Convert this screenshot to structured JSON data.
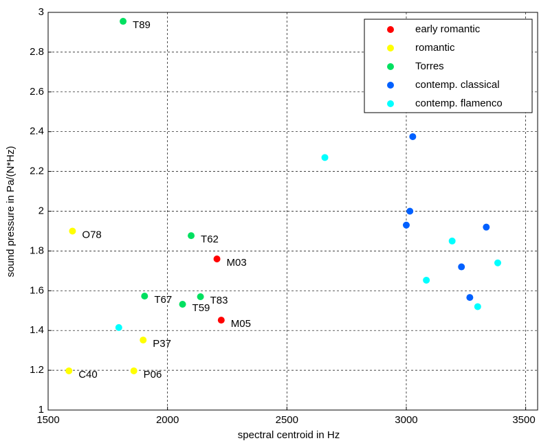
{
  "chart_data": {
    "type": "scatter",
    "x_label": "spectral centroid in Hz",
    "y_label": "sound pressure in Pa/(N*Hz)",
    "xlim": [
      1500,
      3550
    ],
    "xticks": [
      1500,
      2000,
      2500,
      3000,
      3500
    ],
    "ylim": [
      1,
      3
    ],
    "yticks": [
      1,
      1.2,
      1.4,
      1.6,
      1.8,
      2,
      2.2,
      2.4,
      2.6,
      2.8,
      3
    ],
    "grid": true,
    "legend": "top-right",
    "series": [
      {
        "name": "early romantic",
        "color": "#ff0000",
        "x": [
          2207,
          2225
        ],
        "values": [
          1.76,
          1.452
        ],
        "labels": [
          "M03",
          "M05"
        ]
      },
      {
        "name": "romantic",
        "color": "#ffff00",
        "x": [
          1602,
          1898,
          1587,
          1859
        ],
        "values": [
          1.9,
          1.352,
          1.197,
          1.197
        ],
        "labels": [
          "O78",
          "P37",
          "C40",
          "P06"
        ]
      },
      {
        "name": "Torres",
        "color": "#00e060",
        "x": [
          1814,
          2099,
          1904,
          2138,
          2063
        ],
        "values": [
          2.955,
          1.877,
          1.573,
          1.57,
          1.532
        ],
        "labels": [
          "T89",
          "T62",
          "T67",
          "T83",
          "T59"
        ]
      },
      {
        "name": "contemp. classical",
        "color": "#0060ff",
        "x": [
          3027,
          3015,
          3000,
          3335,
          3231,
          3266
        ],
        "values": [
          2.375,
          2.0,
          1.93,
          1.92,
          1.72,
          1.566
        ]
      },
      {
        "name": "contemp. flamenco",
        "color": "#00ffff",
        "x": [
          1796,
          2659,
          3192,
          3383,
          3084,
          3299
        ],
        "values": [
          1.415,
          2.27,
          1.85,
          1.74,
          1.653,
          1.52
        ]
      }
    ]
  }
}
